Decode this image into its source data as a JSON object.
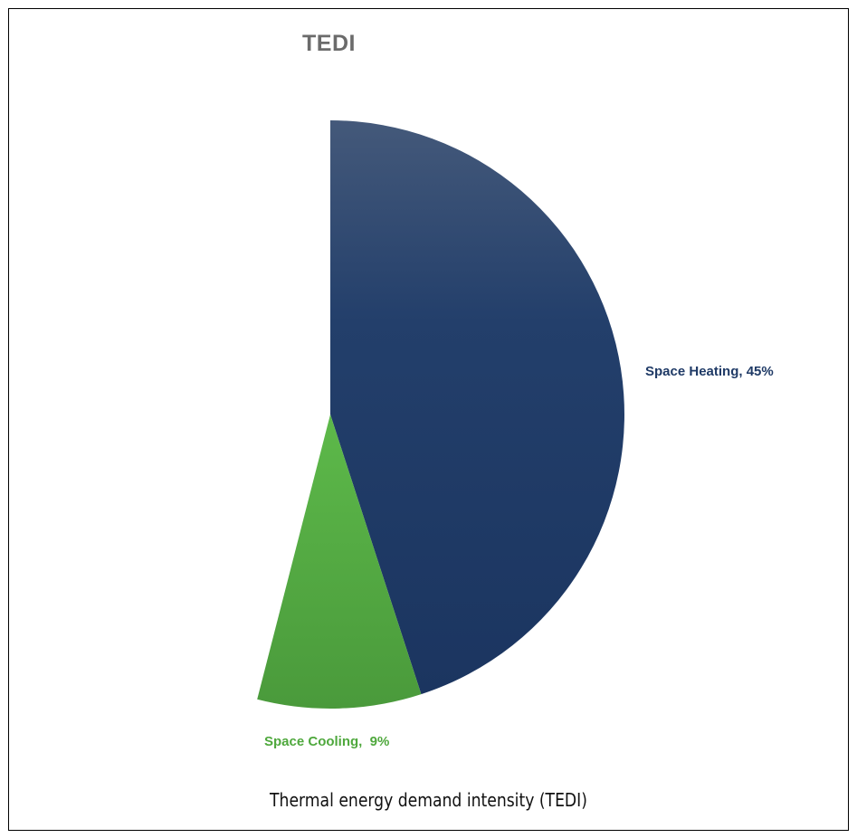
{
  "chart_data": {
    "type": "pie",
    "title": "TEDI",
    "slices": [
      {
        "label": "Space Heating",
        "value": 45,
        "display": "Space Heating, 45%",
        "color": "#1f3a66"
      },
      {
        "label": "Space Cooling",
        "value": 9,
        "display": "Space Cooling,  9%",
        "color": "#4fa83d"
      }
    ],
    "value_unit": "%",
    "start_angle_deg": 0,
    "direction": "clockwise",
    "legend": "none (data labels beside slices)"
  },
  "figure": {
    "caption": "Thermal energy demand intensity (TEDI)"
  }
}
